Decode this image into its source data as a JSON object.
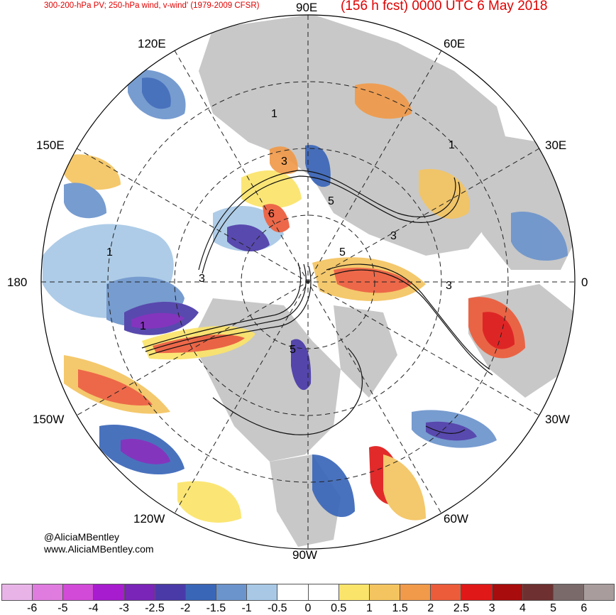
{
  "title_left": "300-200-hPa PV; 250-hPa wind, v-wind' (1979-2009 CFSR)",
  "title_right": "(156 h fcst) 0000 UTC 6 May 2018",
  "longitude_labels": {
    "lon_90e": "90E",
    "lon_60e": "60E",
    "lon_30e": "30E",
    "lon_0": "0",
    "lon_30w": "30W",
    "lon_60w": "60W",
    "lon_90w": "90W",
    "lon_120w": "120W",
    "lon_150w": "150W",
    "lon_180": "180",
    "lon_150e": "150E",
    "lon_120e": "120E"
  },
  "pv_contour_labels": [
    "1",
    "1",
    "1",
    "3",
    "5",
    "5",
    "3",
    "3",
    "1",
    "3",
    "5",
    "6"
  ],
  "credit": {
    "handle": "@AliciaMBentley",
    "website": "www.AliciaMBentley.com"
  },
  "colorbar": {
    "ticks": [
      "-6",
      "-5",
      "-4",
      "-3",
      "-2.5",
      "-2",
      "-1.5",
      "-1",
      "-0.5",
      "0",
      "0.5",
      "1",
      "1.5",
      "2",
      "2.5",
      "3",
      "4",
      "5",
      "6"
    ],
    "colors": [
      "#e8b4e8",
      "#e07ce0",
      "#d24ad8",
      "#a81ccf",
      "#7a24b8",
      "#4a3aa8",
      "#3a66b8",
      "#6c94cc",
      "#a8c8e6",
      "#ffffff",
      "#ffffff",
      "#fbe46a",
      "#f4c460",
      "#f09a4a",
      "#ec5c3a",
      "#e01818",
      "#a80c0c",
      "#6e3030",
      "#7a6a6a",
      "#a89c9c"
    ]
  },
  "colors": {
    "title": "#e00000",
    "land": "#c8c8c8",
    "ocean": "#ffffff"
  }
}
